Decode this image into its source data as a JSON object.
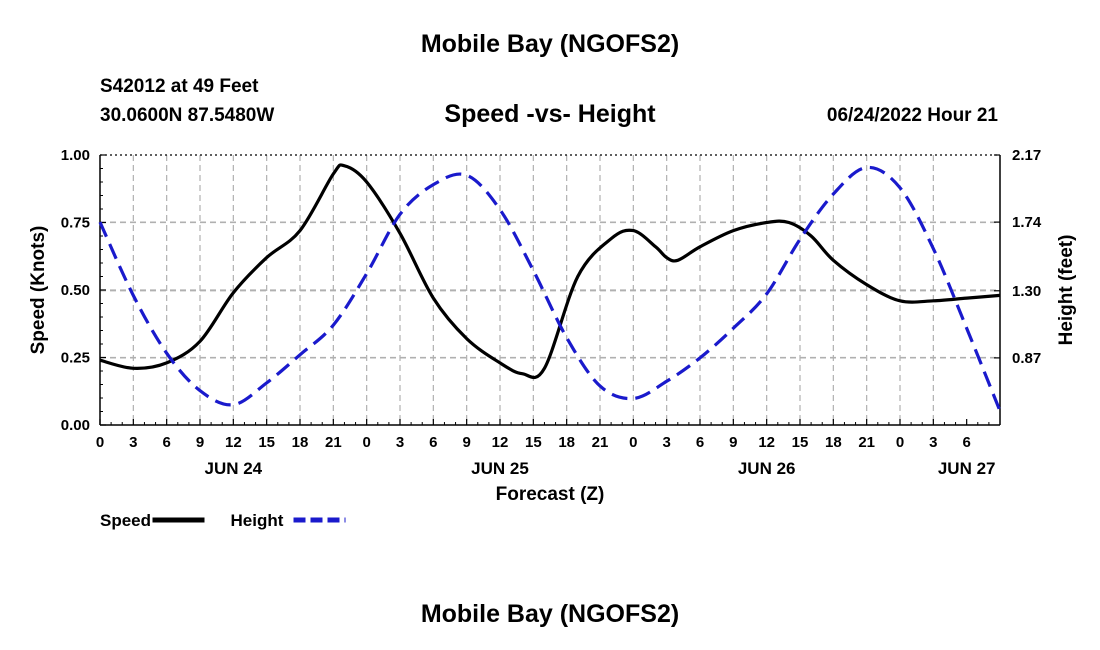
{
  "header": {
    "title": "Mobile Bay (NGOFS2)",
    "station": "S42012 at 49 Feet",
    "coords": "30.0600N  87.5480W",
    "subtitle": "Speed -vs- Height",
    "datetime": "06/24/2022 Hour 21"
  },
  "footer": {
    "title": "Mobile Bay (NGOFS2)"
  },
  "chart_data": {
    "type": "line",
    "xlabel": "Forecast (Z)",
    "ylabel_left": "Speed (Knots)",
    "ylabel_right": "Height (feet)",
    "x_tick_labels": [
      "0",
      "3",
      "6",
      "9",
      "12",
      "15",
      "18",
      "21",
      "0",
      "3",
      "6",
      "9",
      "12",
      "15",
      "18",
      "21",
      "0",
      "3",
      "6",
      "9",
      "12",
      "15",
      "18",
      "21",
      "0",
      "3",
      "6"
    ],
    "date_labels": [
      {
        "label": "JUN 24",
        "hour_index": 12
      },
      {
        "label": "JUN 25",
        "hour_index": 36
      },
      {
        "label": "JUN 26",
        "hour_index": 60
      },
      {
        "label": "JUN 27",
        "hour_index": 78
      }
    ],
    "left_ylim": [
      0,
      1.0
    ],
    "left_yticks": [
      "0.00",
      "0.25",
      "0.50",
      "0.75",
      "1.00"
    ],
    "right_ylim": [
      0.44,
      2.17
    ],
    "right_yticks": [
      "0.87",
      "1.30",
      "1.74",
      "2.17"
    ],
    "grid": true,
    "legend_placement": "bottom-left",
    "series": [
      {
        "name": "Speed",
        "axis": "left",
        "color": "#000000",
        "style": "solid",
        "points": [
          [
            0,
            0.24
          ],
          [
            3,
            0.21
          ],
          [
            6,
            0.23
          ],
          [
            9,
            0.31
          ],
          [
            12,
            0.49
          ],
          [
            15,
            0.62
          ],
          [
            18,
            0.72
          ],
          [
            21,
            0.93
          ],
          [
            22,
            0.96
          ],
          [
            24,
            0.9
          ],
          [
            27,
            0.71
          ],
          [
            30,
            0.47
          ],
          [
            33,
            0.32
          ],
          [
            36,
            0.23
          ],
          [
            38,
            0.19
          ],
          [
            40,
            0.21
          ],
          [
            43,
            0.55
          ],
          [
            46,
            0.69
          ],
          [
            48,
            0.72
          ],
          [
            50,
            0.66
          ],
          [
            51,
            0.62
          ],
          [
            52,
            0.61
          ],
          [
            54,
            0.66
          ],
          [
            57,
            0.72
          ],
          [
            60,
            0.75
          ],
          [
            62,
            0.75
          ],
          [
            64,
            0.7
          ],
          [
            66,
            0.61
          ],
          [
            69,
            0.52
          ],
          [
            72,
            0.46
          ],
          [
            75,
            0.46
          ],
          [
            78,
            0.47
          ],
          [
            81,
            0.48
          ]
        ]
      },
      {
        "name": "Height",
        "axis": "right",
        "color": "#1a1acc",
        "style": "dashed",
        "points": [
          [
            0,
            1.74
          ],
          [
            3,
            1.27
          ],
          [
            6,
            0.9
          ],
          [
            9,
            0.66
          ],
          [
            12,
            0.57
          ],
          [
            15,
            0.71
          ],
          [
            18,
            0.89
          ],
          [
            21,
            1.08
          ],
          [
            24,
            1.41
          ],
          [
            27,
            1.79
          ],
          [
            30,
            1.98
          ],
          [
            33,
            2.04
          ],
          [
            36,
            1.82
          ],
          [
            39,
            1.43
          ],
          [
            42,
            1.0
          ],
          [
            45,
            0.69
          ],
          [
            48,
            0.61
          ],
          [
            51,
            0.72
          ],
          [
            54,
            0.87
          ],
          [
            57,
            1.06
          ],
          [
            60,
            1.28
          ],
          [
            63,
            1.63
          ],
          [
            66,
            1.92
          ],
          [
            69,
            2.09
          ],
          [
            72,
            1.96
          ],
          [
            75,
            1.57
          ],
          [
            78,
            1.06
          ],
          [
            81,
            0.53
          ]
        ]
      }
    ]
  }
}
